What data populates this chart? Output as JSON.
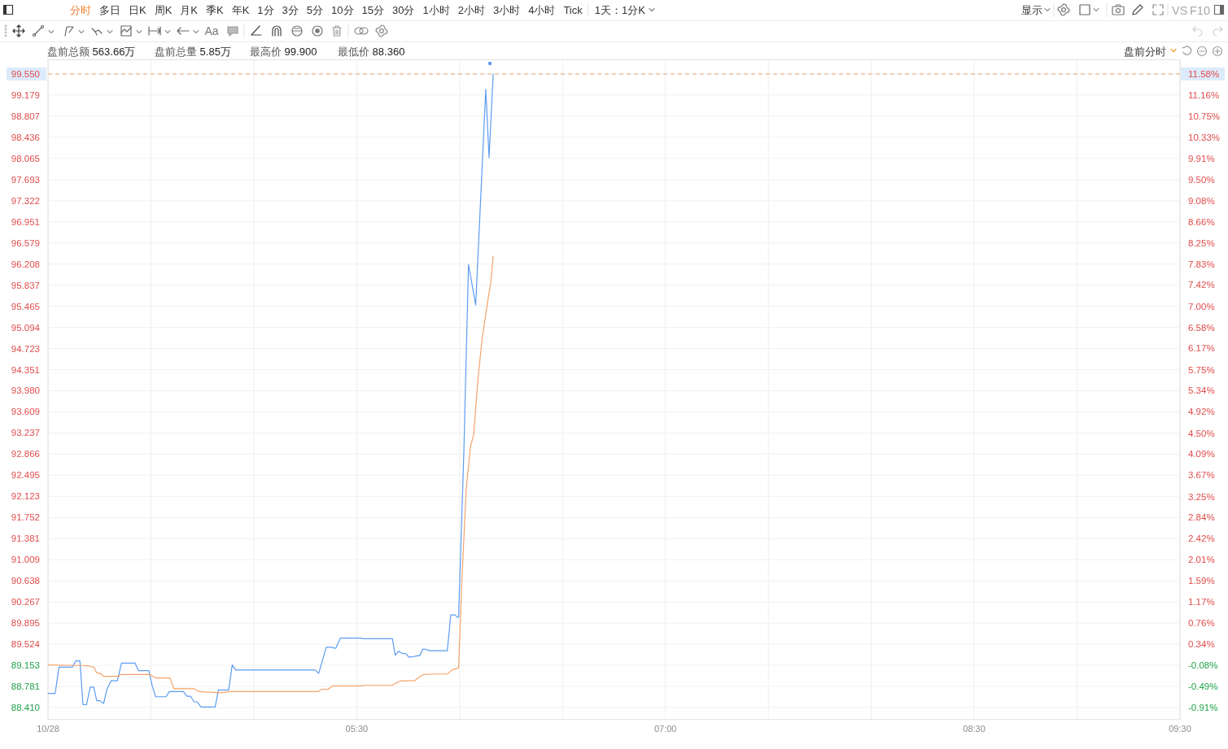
{
  "chart_data": {
    "type": "line",
    "annotations": [
      "分时",
      "多日",
      "日K",
      "周K",
      "月K",
      "季K",
      "年K",
      "1分",
      "3分",
      "5分",
      "10分",
      "15分",
      "30分",
      "1小时",
      "2小时",
      "3小时",
      "4小时",
      "Tick",
      "1天：1分K",
      "显示",
      "VS",
      "F10",
      "Aa",
      "盘前总额 563.66万",
      "盘前总量 5.85万",
      "最高价 99.900",
      "最低价 88.360",
      "盘前分时"
    ],
    "xlim": [
      4,
      9.5
    ],
    "xticks": [
      {
        "value": 4,
        "label": "10/28"
      },
      {
        "value": 4.5,
        "label": null
      },
      {
        "value": 5,
        "label": null
      },
      {
        "value": 5.5,
        "label": "05:30"
      },
      {
        "value": 6,
        "label": null
      },
      {
        "value": 6.5,
        "label": null
      },
      {
        "value": 7,
        "label": "07:00"
      },
      {
        "value": 7.5,
        "label": null
      },
      {
        "value": 8,
        "label": null
      },
      {
        "value": 8.5,
        "label": "08:30"
      },
      {
        "value": 9,
        "label": null
      },
      {
        "value": 9.5,
        "label": "09:30"
      }
    ],
    "ylim": [
      88.2,
      99.8
    ],
    "yticks": [
      {
        "value": 88.41,
        "label": "88.410"
      },
      88.781,
      89.153,
      89.524,
      89.895,
      90.267,
      90.638,
      91.009,
      91.381,
      91.752,
      92.123,
      92.495,
      92.866,
      93.237,
      93.609,
      {
        "value": 93.98,
        "label": "93.980"
      },
      94.351,
      94.723,
      95.094,
      95.465,
      95.837,
      96.208,
      96.579,
      96.951,
      97.322,
      97.693,
      98.065,
      98.436,
      98.807,
      99.179,
      {
        "value": 99.55,
        "label": "99.550"
      }
    ],
    "y2lim": [
      -1.143,
      11.858
    ],
    "y2ticks": [
      {
        "value": -0.91,
        "label": "-0.91%"
      },
      {
        "value": -0.49,
        "label": "-0.49%"
      },
      {
        "value": -0.08,
        "label": "-0.08%"
      },
      {
        "value": 0.34,
        "label": "0.34%"
      },
      {
        "value": 0.76,
        "label": "0.76%"
      },
      {
        "value": 1.17,
        "label": "1.17%"
      },
      {
        "value": 1.59,
        "label": "1.59%"
      },
      {
        "value": 2.01,
        "label": "2.01%"
      },
      {
        "value": 2.42,
        "label": "2.42%"
      },
      {
        "value": 2.84,
        "label": "2.84%"
      },
      {
        "value": 3.25,
        "label": "3.25%"
      },
      {
        "value": 3.67,
        "label": "3.67%"
      },
      {
        "value": 4.09,
        "label": "4.09%"
      },
      {
        "value": 4.5,
        "label": "4.50%"
      },
      {
        "value": 4.92,
        "label": "4.92%"
      },
      {
        "value": 5.34,
        "label": "5.34%"
      },
      {
        "value": 5.75,
        "label": "5.75%"
      },
      {
        "value": 6.17,
        "label": "6.17%"
      },
      {
        "value": 6.58,
        "label": "6.58%"
      },
      {
        "value": 7.0,
        "label": "7.00%"
      },
      {
        "value": 7.42,
        "label": "7.42%"
      },
      {
        "value": 7.83,
        "label": "7.83%"
      },
      {
        "value": 8.25,
        "label": "8.25%"
      },
      {
        "value": 8.66,
        "label": "8.66%"
      },
      {
        "value": 9.08,
        "label": "9.08%"
      },
      {
        "value": 9.5,
        "label": "9.50%"
      },
      {
        "value": 9.91,
        "label": "9.91%"
      },
      {
        "value": 10.33,
        "label": "10.33%"
      },
      {
        "value": 10.75,
        "label": "10.75%"
      },
      {
        "value": 11.16,
        "label": "11.16%"
      },
      {
        "value": 11.58,
        "label": "11.58%"
      }
    ],
    "grid": true,
    "ref_lines": [
      {
        "axis": "y",
        "value": 99.55,
        "color": "#f4a36a",
        "line_style": "dashed"
      }
    ],
    "series": [
      {
        "color": "#5b9cf0",
        "x": [
          4.0,
          4.035,
          4.053,
          4.118,
          4.135,
          4.155,
          4.17,
          4.187,
          4.205,
          4.222,
          4.237,
          4.252,
          4.27,
          4.287,
          4.307,
          4.337,
          4.357,
          4.423,
          4.44,
          4.49,
          4.507,
          4.523,
          4.573,
          4.59,
          4.658,
          4.675,
          4.692,
          4.71,
          4.725,
          4.743,
          4.812,
          4.828,
          4.878,
          4.895,
          4.912,
          5.298,
          5.315,
          5.352,
          5.375,
          5.398,
          5.42,
          5.52,
          5.535,
          5.673,
          5.687,
          5.703,
          5.722,
          5.737,
          5.753,
          5.77,
          5.795,
          5.805,
          5.822,
          5.838,
          5.853,
          5.94,
          5.957,
          5.978,
          5.987,
          5.995,
          6.02,
          6.043,
          6.078,
          6.127,
          6.143,
          6.163
        ],
        "values": [
          88.66,
          88.66,
          89.12,
          89.12,
          89.23,
          89.23,
          88.46,
          88.46,
          88.77,
          88.77,
          88.53,
          88.53,
          88.48,
          88.74,
          88.88,
          88.88,
          89.19,
          89.19,
          89.06,
          89.06,
          88.78,
          88.6,
          88.6,
          88.69,
          88.69,
          88.61,
          88.61,
          88.51,
          88.51,
          88.42,
          88.42,
          88.72,
          88.72,
          89.16,
          89.07,
          89.07,
          89.01,
          89.47,
          89.47,
          89.45,
          89.63,
          89.63,
          89.62,
          89.62,
          89.33,
          89.4,
          89.36,
          89.36,
          89.3,
          89.3,
          89.32,
          89.32,
          89.44,
          89.43,
          89.41,
          89.41,
          90.04,
          90.04,
          90.0,
          90.0,
          92.84,
          96.2,
          95.49,
          99.28,
          98.08,
          99.55
        ]
      },
      {
        "color": "#f4a36a",
        "x": [
          4.0,
          4.13,
          4.168,
          4.198,
          4.222,
          4.237,
          4.255,
          4.27,
          4.343,
          4.352,
          4.497,
          4.522,
          4.593,
          4.612,
          4.71,
          4.733,
          4.833,
          4.887,
          5.313,
          5.328,
          5.36,
          5.383,
          5.52,
          5.535,
          5.673,
          5.688,
          5.718,
          5.78,
          5.81,
          5.825,
          5.872,
          5.94,
          5.963,
          5.995,
          6.012,
          6.032,
          6.053,
          6.068,
          6.09,
          6.11,
          6.138,
          6.152,
          6.163
        ],
        "values": [
          89.16,
          89.15,
          89.15,
          89.14,
          89.12,
          89.02,
          89.01,
          88.96,
          88.96,
          88.99,
          88.99,
          88.93,
          88.93,
          88.74,
          88.74,
          88.69,
          88.67,
          88.69,
          88.69,
          88.73,
          88.73,
          88.79,
          88.79,
          88.8,
          88.8,
          88.84,
          88.88,
          88.88,
          88.96,
          88.99,
          89.0,
          89.0,
          89.07,
          89.11,
          90.73,
          92.25,
          93.01,
          93.2,
          94.23,
          94.91,
          95.59,
          95.9,
          96.34
        ]
      }
    ]
  }
}
